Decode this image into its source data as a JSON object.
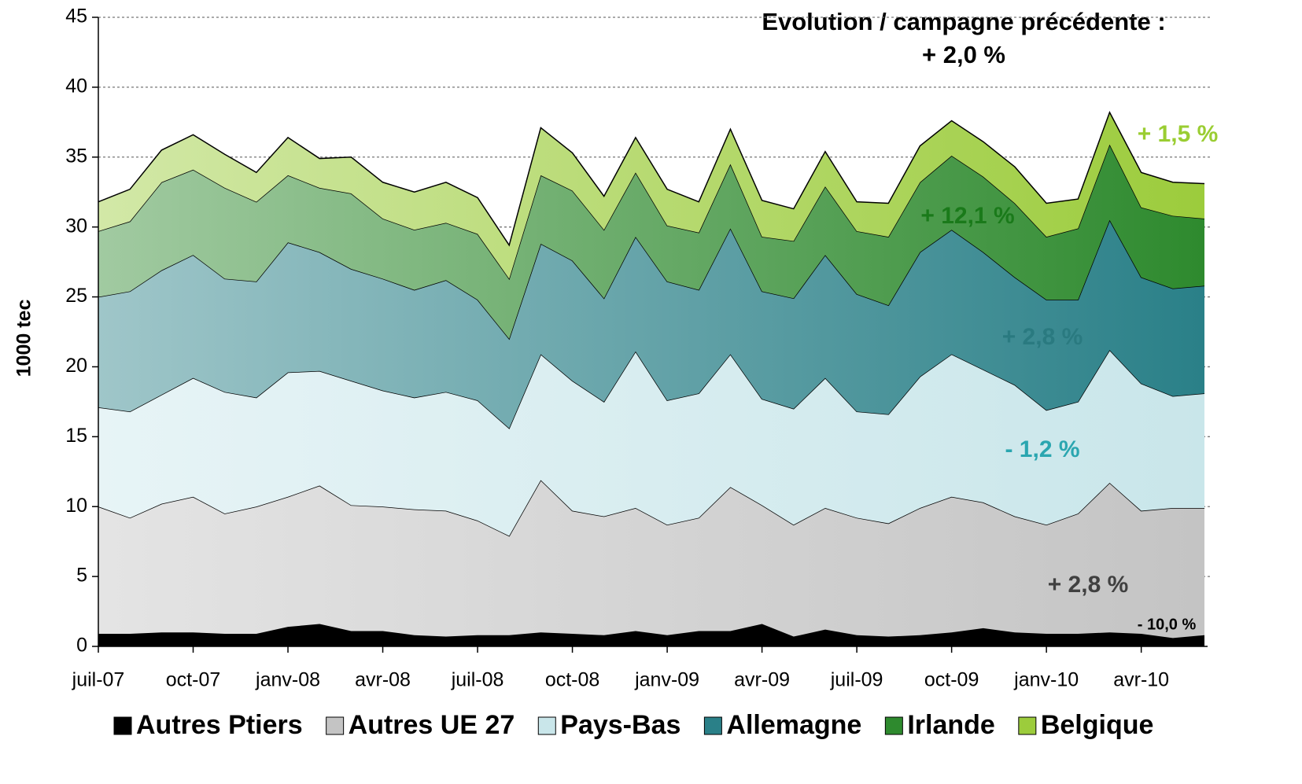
{
  "chart_data": {
    "type": "stacked_area",
    "title": [
      "Evolution / campagne précédente :",
      "+ 2,0 %"
    ],
    "y_label": "1000 tec",
    "categories": [
      "juil-07",
      null,
      null,
      "oct-07",
      null,
      null,
      "janv-08",
      null,
      null,
      "avr-08",
      null,
      null,
      "juil-08",
      null,
      null,
      "oct-08",
      null,
      null,
      "janv-09",
      null,
      null,
      "avr-09",
      null,
      null,
      "juil-09",
      null,
      null,
      "oct-09",
      null,
      null,
      "janv-10",
      null,
      null,
      "avr-10",
      null,
      null
    ],
    "ylim": [
      0,
      45
    ],
    "yticks": [
      0,
      5,
      10,
      15,
      20,
      25,
      30,
      35,
      40,
      45
    ],
    "grid": true,
    "legend": "bottom",
    "series": [
      {
        "name": "Autres Ptiers",
        "color": "#000000",
        "annotation": "- 10,0 %",
        "annotation_color": "#000000",
        "values": [
          0.9,
          0.9,
          1.0,
          1.0,
          0.9,
          0.9,
          1.4,
          1.6,
          1.1,
          1.1,
          0.8,
          0.7,
          0.8,
          0.8,
          1.0,
          0.9,
          0.8,
          1.1,
          0.8,
          1.1,
          1.1,
          1.6,
          0.7,
          1.2,
          0.8,
          0.7,
          0.8,
          1.0,
          1.3,
          1.0,
          0.9,
          0.9,
          1.0,
          0.9,
          0.6,
          0.8
        ]
      },
      {
        "name": "Autres UE 27",
        "color": "#c4c4c4",
        "annotation": "+ 2,8 %",
        "annotation_color": "#404040",
        "values": [
          9.1,
          8.3,
          9.2,
          9.7,
          8.6,
          9.1,
          9.3,
          9.9,
          9.0,
          8.9,
          9.0,
          9.0,
          8.2,
          7.1,
          10.9,
          8.8,
          8.5,
          8.8,
          7.9,
          8.1,
          10.3,
          8.5,
          8.0,
          8.7,
          8.4,
          8.1,
          9.1,
          9.7,
          9.0,
          8.3,
          7.8,
          8.6,
          10.7,
          8.8,
          9.3,
          9.1
        ]
      },
      {
        "name": "Pays-Bas",
        "color": "#c9e6ea",
        "annotation": "- 1,2 %",
        "annotation_color": "#2aa6b0",
        "values": [
          7.1,
          7.6,
          7.8,
          8.5,
          8.7,
          7.8,
          8.9,
          8.2,
          8.9,
          8.3,
          8.0,
          8.5,
          8.6,
          7.7,
          9.0,
          9.3,
          8.2,
          11.2,
          8.9,
          8.9,
          9.5,
          7.6,
          8.3,
          9.3,
          7.6,
          7.8,
          9.4,
          10.2,
          9.5,
          9.4,
          8.2,
          8.0,
          9.5,
          9.1,
          8.0,
          8.2
        ]
      },
      {
        "name": "Allemagne",
        "color": "#2a8088",
        "annotation": "+ 2,8 %",
        "annotation_color": "#2a7a80",
        "values": [
          7.9,
          8.6,
          8.9,
          8.8,
          8.1,
          8.3,
          9.3,
          8.5,
          8.0,
          8.0,
          7.7,
          8.0,
          7.2,
          6.4,
          7.9,
          8.6,
          7.4,
          8.2,
          8.5,
          7.4,
          9.0,
          7.7,
          7.9,
          8.8,
          8.4,
          7.8,
          8.9,
          8.9,
          8.4,
          7.7,
          7.9,
          7.3,
          9.3,
          7.6,
          7.7,
          7.7
        ]
      },
      {
        "name": "Irlande",
        "color": "#2e8a2e",
        "annotation": "+ 12,1 %",
        "annotation_color": "#1a7a1a",
        "values": [
          4.7,
          5.0,
          6.3,
          6.1,
          6.5,
          5.7,
          4.8,
          4.6,
          5.4,
          4.3,
          4.3,
          4.1,
          4.7,
          4.3,
          4.9,
          5.0,
          4.9,
          4.6,
          4.0,
          4.1,
          4.6,
          3.9,
          4.1,
          4.9,
          4.5,
          4.9,
          5.0,
          5.3,
          5.4,
          5.3,
          4.5,
          5.1,
          5.4,
          5.0,
          5.2,
          4.8
        ]
      },
      {
        "name": "Belgique",
        "color": "#9ccc3c",
        "annotation": "+ 1,5 %",
        "annotation_color": "#9acd32",
        "values": [
          2.1,
          2.3,
          2.3,
          2.5,
          2.4,
          2.1,
          2.7,
          2.1,
          2.6,
          2.6,
          2.7,
          2.9,
          2.6,
          2.4,
          3.4,
          2.7,
          2.4,
          2.5,
          2.6,
          2.2,
          2.5,
          2.6,
          2.3,
          2.5,
          2.1,
          2.4,
          2.6,
          2.5,
          2.5,
          2.6,
          2.4,
          2.1,
          2.3,
          2.5,
          2.4,
          2.5
        ]
      }
    ]
  }
}
